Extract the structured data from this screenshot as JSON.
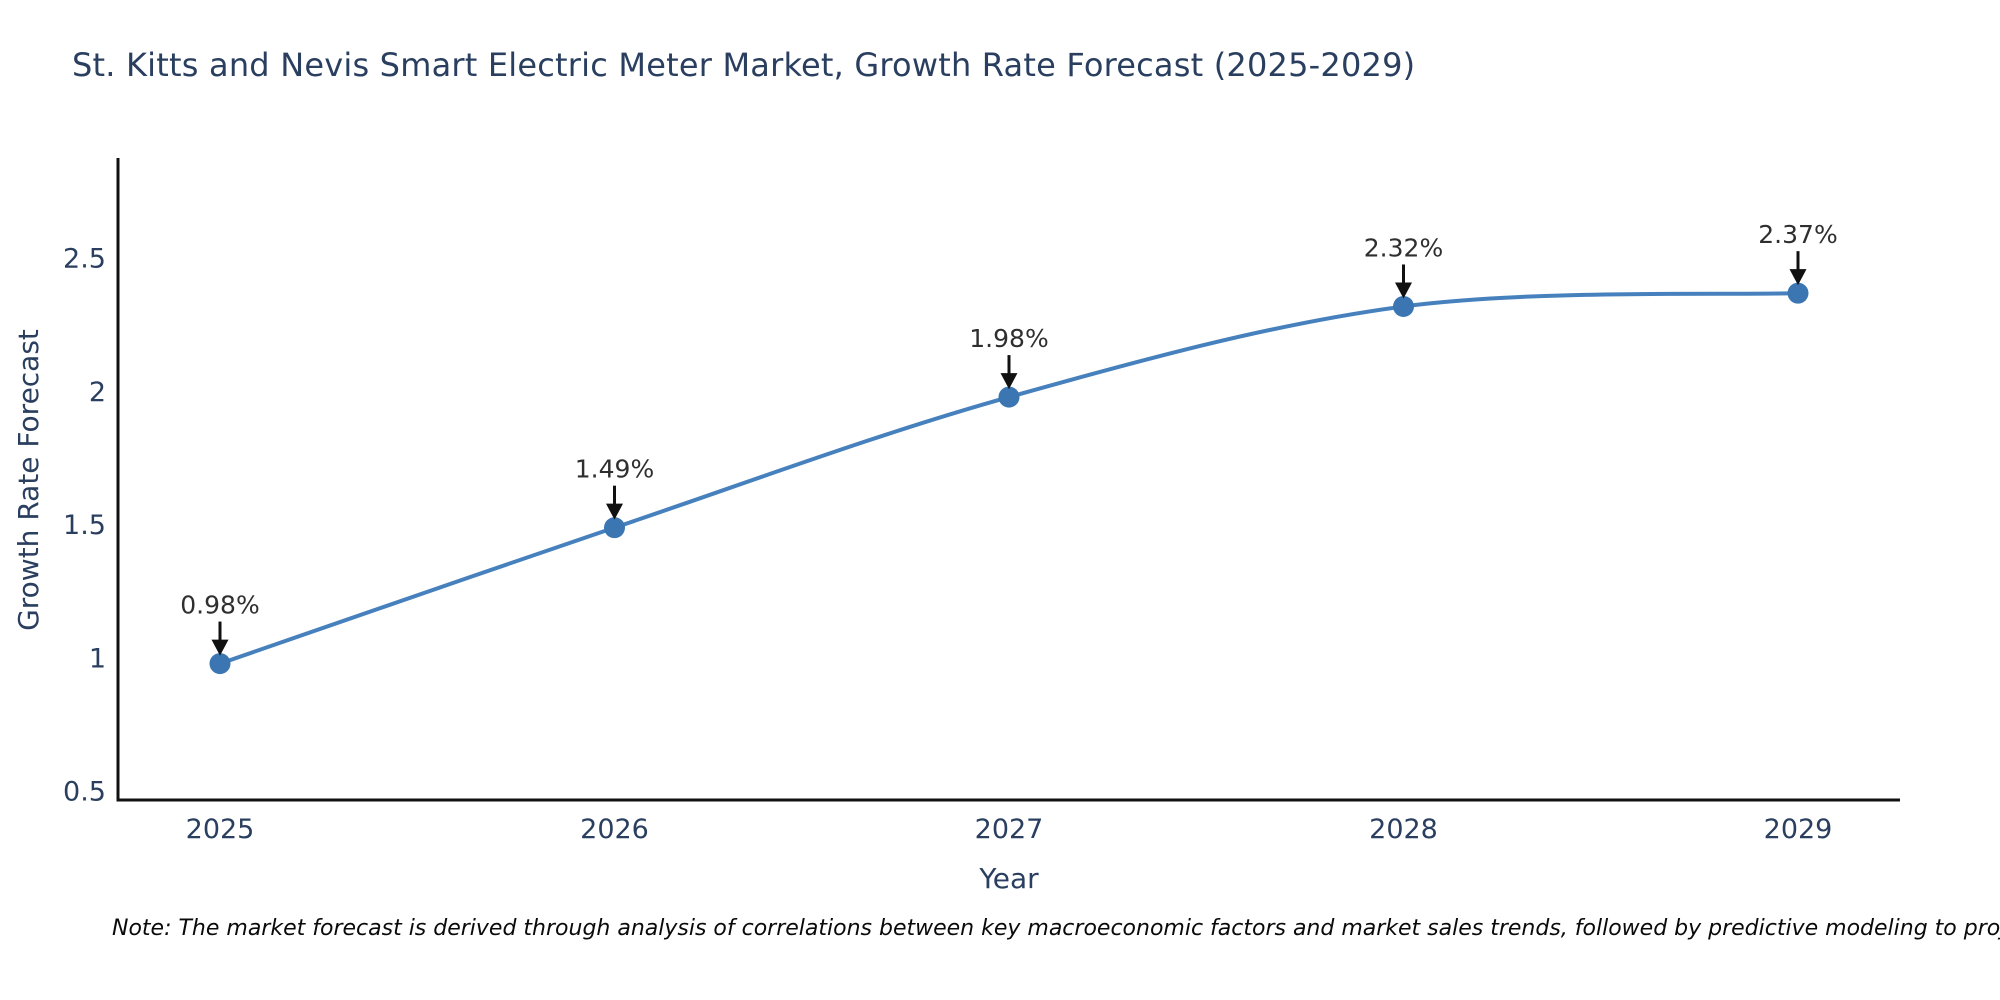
{
  "note": "Note: The market forecast is derived through analysis of correlations between key macroeconomic factors and market sales trends, followed by predictive modeling to project future sales",
  "chart_data": {
    "type": "line",
    "title": "St. Kitts and Nevis Smart Electric Meter Market, Growth Rate Forecast (2025-2029)",
    "xlabel": "Year",
    "ylabel": "Growth Rate Forecast",
    "x": [
      2025,
      2026,
      2027,
      2028,
      2029
    ],
    "values": [
      0.98,
      1.49,
      1.98,
      2.32,
      2.37
    ],
    "point_labels": [
      "0.98%",
      "1.49%",
      "1.98%",
      "2.32%",
      "2.37%"
    ],
    "yticks": [
      0.5,
      1,
      1.5,
      2,
      2.5
    ],
    "ylim": [
      0.5,
      2.9
    ],
    "grid": false,
    "legend": "none",
    "line_style": "spline",
    "annotation_style": "arrow-down-to-point",
    "colors": {
      "line": "#4681bd",
      "marker": "#3b76b3",
      "axis": "#111111",
      "tick_text": "#2a3f5f",
      "title_text": "#2a3f5f",
      "annotation_text": "#2f2f2f",
      "arrow": "#111111",
      "note_text": "#0a0a0a",
      "background": "#ffffff"
    }
  }
}
